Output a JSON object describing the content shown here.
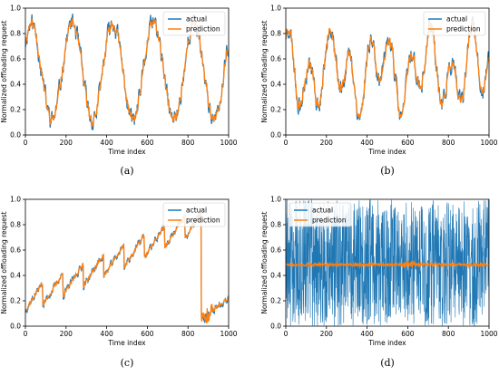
{
  "colors": {
    "actual": "#1f77b4",
    "prediction": "#ff7f0e",
    "axis": "#000000"
  },
  "chart_data": [
    {
      "panel": "a",
      "caption": "(a)",
      "type": "line",
      "pattern": "sine_5_periods",
      "xlabel": "Time index",
      "ylabel": "Normalized offloading request",
      "xlim": [
        0,
        1000
      ],
      "ylim": [
        0.0,
        1.0
      ],
      "xticks": [
        "0",
        "200",
        "400",
        "600",
        "800",
        "1000"
      ],
      "yticks": [
        "0.0",
        "0.2",
        "0.4",
        "0.6",
        "0.8",
        "1.0"
      ],
      "legend": {
        "loc": "upper right",
        "entries": [
          "actual",
          "prediction"
        ]
      },
      "series": [
        {
          "name": "actual",
          "approx": "0.5 + 0.38*sin(2*pi*t/200), noise ~0.05; range ~0.07-0.93"
        },
        {
          "name": "prediction",
          "approx": "tracks actual closely, smoother"
        }
      ]
    },
    {
      "panel": "b",
      "caption": "(b)",
      "type": "line",
      "pattern": "two_sines",
      "xlabel": "Time index",
      "ylabel": "Normalized offloading request",
      "xlim": [
        0,
        1000
      ],
      "ylim": [
        0.0,
        1.0
      ],
      "xticks": [
        "0",
        "200",
        "400",
        "600",
        "800",
        "1000"
      ],
      "yticks": [
        "0.0",
        "0.2",
        "0.4",
        "0.6",
        "0.8",
        "1.0"
      ],
      "legend": {
        "loc": "upper right",
        "entries": [
          "actual",
          "prediction"
        ]
      },
      "series": [
        {
          "name": "actual",
          "approx": "superposition of two periodic components; range ~0.07-0.97"
        },
        {
          "name": "prediction",
          "approx": "tracks actual closely"
        }
      ]
    },
    {
      "panel": "c",
      "caption": "(c)",
      "type": "line",
      "pattern": "sawtooth",
      "xlabel": "Time index",
      "ylabel": "Normalized offloading request",
      "xlim": [
        0,
        1000
      ],
      "ylim": [
        0.0,
        1.0
      ],
      "xticks": [
        "0",
        "200",
        "400",
        "600",
        "800",
        "1000"
      ],
      "yticks": [
        "0.0",
        "0.2",
        "0.4",
        "0.6",
        "0.8",
        "1.0"
      ],
      "legend": {
        "loc": "upper right",
        "entries": [
          "actual",
          "prediction"
        ]
      },
      "series": [
        {
          "name": "actual",
          "approx": "sawtooth period ~100, rising trend 0.15->0.97 until t~860, drops to ~0.05, then rises to ~0.25"
        },
        {
          "name": "prediction",
          "approx": "tracks actual closely"
        }
      ]
    },
    {
      "panel": "d",
      "caption": "(d)",
      "type": "line",
      "pattern": "noise",
      "xlabel": "Time index",
      "ylabel": "Normalized offloading request",
      "xlim": [
        0,
        1000
      ],
      "ylim": [
        0.0,
        1.0
      ],
      "xticks": [
        "0",
        "200",
        "400",
        "600",
        "800",
        "1000"
      ],
      "yticks": [
        "0.0",
        "0.2",
        "0.4",
        "0.6",
        "0.8",
        "1.0"
      ],
      "legend": {
        "loc": "upper left",
        "entries": [
          "actual",
          "prediction"
        ]
      },
      "series": [
        {
          "name": "actual",
          "approx": "uniform random noise in [0, 1]"
        },
        {
          "name": "prediction",
          "approx": "flat near 0.48-0.50"
        }
      ]
    }
  ]
}
